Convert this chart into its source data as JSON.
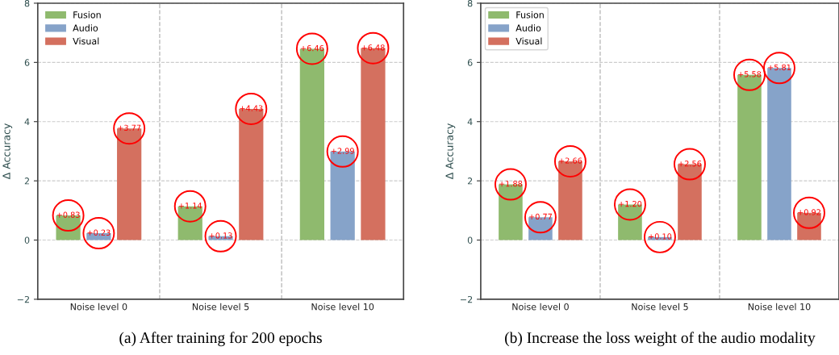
{
  "chart_data": [
    {
      "type": "bar",
      "ylabel": "Δ Accuracy",
      "annotations": [
        "(a) After training for 200 epochs"
      ],
      "categories": [
        "Noise level 0",
        "Noise level 5",
        "Noise level 10"
      ],
      "ylim": [
        -2,
        8
      ],
      "yticks": [
        {
          "value": -2,
          "label": "−2"
        },
        0,
        2,
        4,
        6,
        8
      ],
      "grid": "y",
      "legend": "top left",
      "series": [
        {
          "name": "Fusion",
          "color": "#8fba6e",
          "values": [
            0.83,
            1.14,
            6.46
          ],
          "value_labels": [
            "+0.83",
            "+1.14",
            "+6.46"
          ]
        },
        {
          "name": "Audio",
          "color": "#86a3c9",
          "values": [
            0.23,
            0.13,
            2.99
          ],
          "value_labels": [
            "+0.23",
            "+0.13",
            "+2.99"
          ]
        },
        {
          "name": "Visual",
          "color": "#d4705f",
          "values": [
            3.77,
            4.43,
            6.48
          ],
          "value_labels": [
            "+3.77",
            "+4.43",
            "+6.48"
          ]
        }
      ]
    },
    {
      "type": "bar",
      "ylabel": "Δ Accuracy",
      "annotations": [
        "(b) Increase the loss weight of the audio modality"
      ],
      "categories": [
        "Noise level 0",
        "Noise level 5",
        "Noise level 10"
      ],
      "ylim": [
        -2,
        8
      ],
      "yticks": [
        {
          "value": -2,
          "label": "−2"
        },
        0,
        2,
        4,
        6,
        8
      ],
      "grid": "y",
      "legend": "top left",
      "series": [
        {
          "name": "Fusion",
          "color": "#8fba6e",
          "values": [
            1.88,
            1.2,
            5.58
          ],
          "value_labels": [
            "+1.88",
            "+1.20",
            "+5.58"
          ]
        },
        {
          "name": "Audio",
          "color": "#86a3c9",
          "values": [
            0.77,
            0.1,
            5.81
          ],
          "value_labels": [
            "+0.77",
            "+0.10",
            "+5.81"
          ]
        },
        {
          "name": "Visual",
          "color": "#d4705f",
          "values": [
            2.66,
            2.56,
            0.92
          ],
          "value_labels": [
            "+2.66",
            "+2.56",
            "+0.92"
          ]
        }
      ]
    }
  ]
}
